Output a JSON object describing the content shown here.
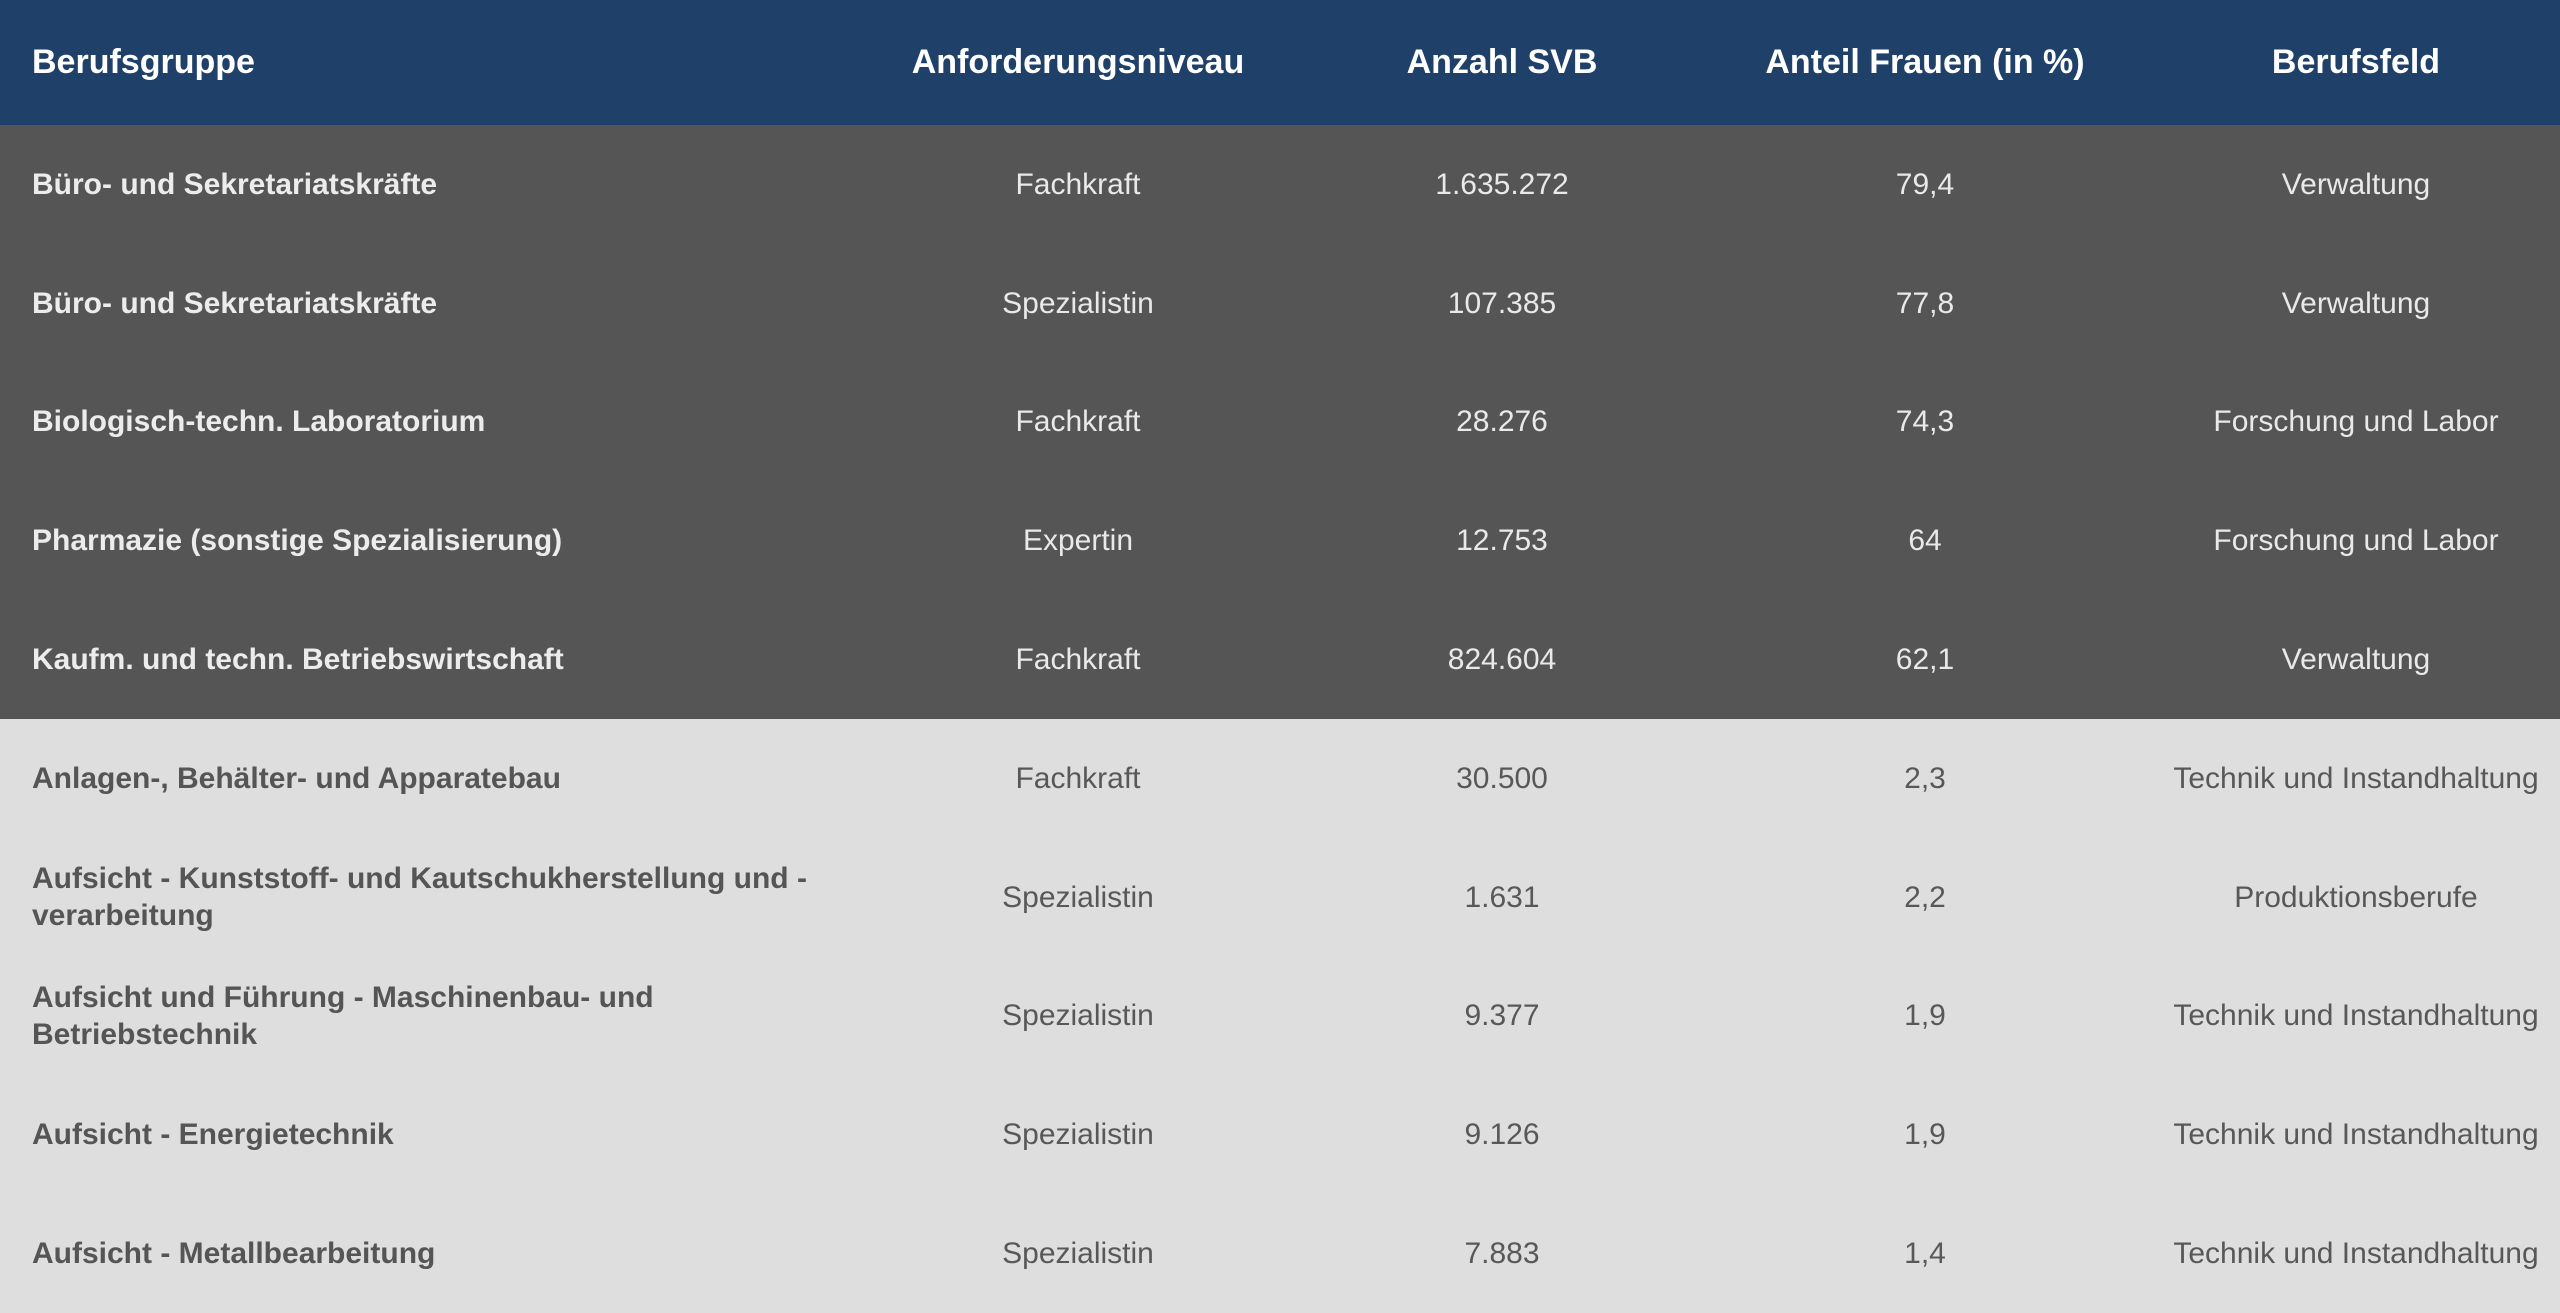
{
  "chart_data": {
    "type": "table",
    "columns": [
      "Berufsgruppe",
      "Anforderungsniveau",
      "Anzahl SVB",
      "Anteil Frauen (in %)",
      "Berufsfeld"
    ],
    "rows": [
      {
        "group": "top",
        "cells": [
          "Büro- und Sekretariatskräfte",
          "Fachkraft",
          "1.635.272",
          "79,4",
          "Verwaltung"
        ]
      },
      {
        "group": "top",
        "cells": [
          "Büro- und Sekretariatskräfte",
          "Spezialistin",
          "107.385",
          "77,8",
          "Verwaltung"
        ]
      },
      {
        "group": "top",
        "cells": [
          "Biologisch-techn. Laboratorium",
          "Fachkraft",
          "28.276",
          "74,3",
          "Forschung und Labor"
        ]
      },
      {
        "group": "top",
        "cells": [
          "Pharmazie (sonstige Spezialisierung)",
          "Expertin",
          "12.753",
          "64",
          "Forschung und Labor"
        ]
      },
      {
        "group": "top",
        "cells": [
          "Kaufm. und techn. Betriebswirtschaft",
          "Fachkraft",
          "824.604",
          "62,1",
          "Verwaltung"
        ]
      },
      {
        "group": "bottom",
        "cells": [
          "Anlagen-, Behälter- und Apparatebau",
          "Fachkraft",
          "30.500",
          "2,3",
          "Technik und Instandhaltung"
        ]
      },
      {
        "group": "bottom",
        "cells": [
          "Aufsicht - Kunststoff- und Kautschukherstellung und -verarbeitung",
          "Spezialistin",
          "1.631",
          "2,2",
          "Produktionsberufe"
        ]
      },
      {
        "group": "bottom",
        "cells": [
          "Aufsicht und Führung - Maschinenbau- und Betriebstechnik",
          "Spezialistin",
          "9.377",
          "1,9",
          "Technik und Instandhaltung"
        ]
      },
      {
        "group": "bottom",
        "cells": [
          "Aufsicht - Energietechnik",
          "Spezialistin",
          "9.126",
          "1,9",
          "Technik und Instandhaltung"
        ]
      },
      {
        "group": "bottom",
        "cells": [
          "Aufsicht - Metallbearbeitung",
          "Spezialistin",
          "7.883",
          "1,4",
          "Technik und Instandhaltung"
        ]
      }
    ],
    "colors": {
      "header_bg": "#1f4169",
      "top_group_bg": "#555555",
      "bottom_group_bg": "#dedede"
    }
  }
}
